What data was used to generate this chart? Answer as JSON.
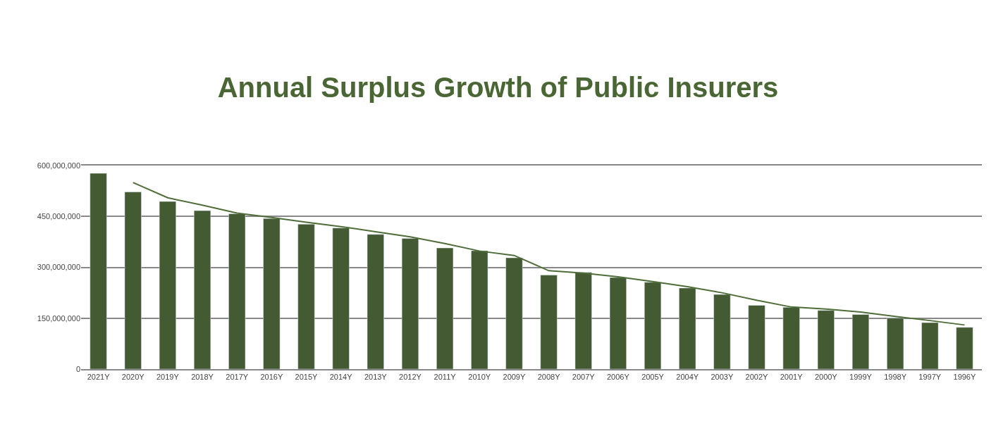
{
  "chart_data": {
    "type": "bar",
    "title": "Annual Surplus Growth of Public Insurers",
    "categories": [
      "2021Y",
      "2020Y",
      "2019Y",
      "2018Y",
      "2017Y",
      "2016Y",
      "2015Y",
      "2014Y",
      "2013Y",
      "2012Y",
      "2011Y",
      "2010Y",
      "2009Y",
      "2008Y",
      "2007Y",
      "2006Y",
      "2005Y",
      "2004Y",
      "2003Y",
      "2002Y",
      "2001Y",
      "2000Y",
      "1999Y",
      "1998Y",
      "1997Y",
      "1996Y"
    ],
    "series": [
      {
        "color": "#435a32",
        "values": [
          577000000,
          522000000,
          494000000,
          467000000,
          458000000,
          444000000,
          427000000,
          416000000,
          397000000,
          385000000,
          357000000,
          349000000,
          328000000,
          277000000,
          285000000,
          270000000,
          256000000,
          239000000,
          220000000,
          188000000,
          182000000,
          173000000,
          161000000,
          150000000,
          137000000,
          123000000
        ]
      },
      {
        "type": "line",
        "color": "#4f6e3a",
        "values": [
          null,
          550000000,
          505000000,
          483000000,
          460000000,
          447000000,
          433000000,
          420000000,
          405000000,
          390000000,
          370000000,
          348000000,
          335000000,
          290000000,
          283000000,
          272000000,
          258000000,
          243000000,
          225000000,
          203000000,
          183000000,
          177000000,
          168000000,
          155000000,
          143000000,
          130000000
        ]
      }
    ],
    "ylim": [
      0,
      600000000
    ],
    "yticks": [
      {
        "value": 0,
        "label": "0"
      },
      {
        "value": 150000000,
        "label": "150,000,000"
      },
      {
        "value": 300000000,
        "label": "300,000,000"
      },
      {
        "value": 450000000,
        "label": "450,000,000"
      },
      {
        "value": 600000000,
        "label": "600,000,000"
      }
    ],
    "grid": "y",
    "marker": "none",
    "line_style": "solid"
  }
}
